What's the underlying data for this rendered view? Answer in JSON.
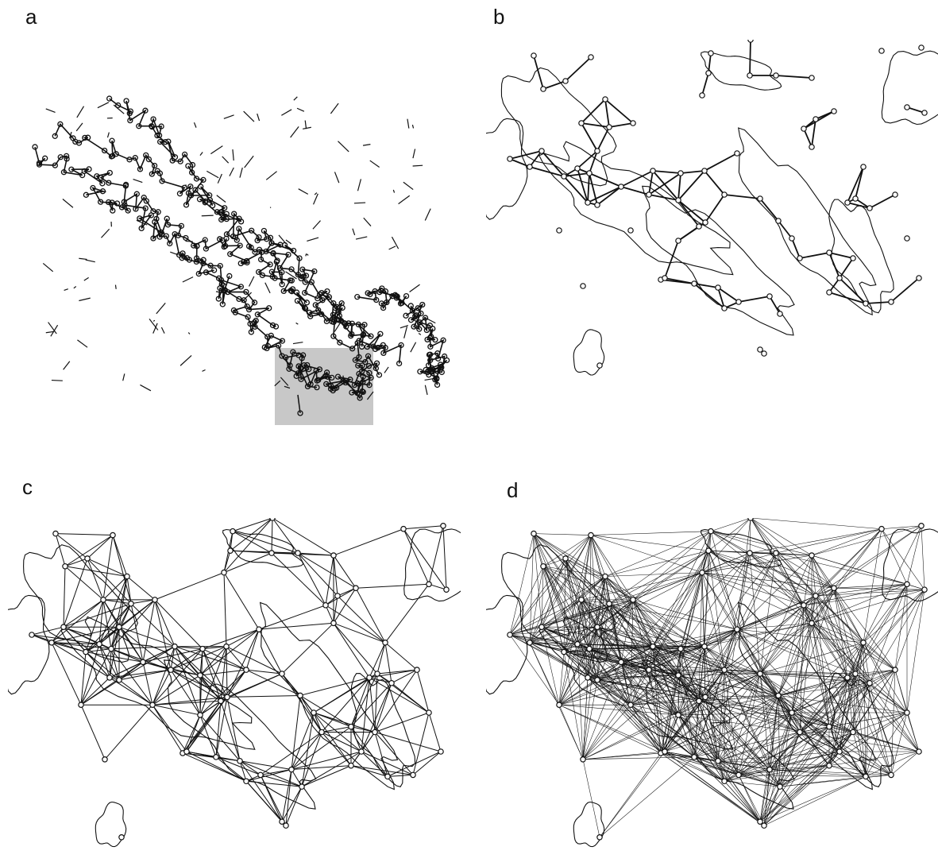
{
  "figure": {
    "panels": [
      {
        "id": "a",
        "label": "a"
      },
      {
        "id": "b",
        "label": "b"
      },
      {
        "id": "c",
        "label": "c"
      },
      {
        "id": "d",
        "label": "d"
      }
    ],
    "colors": {
      "ink": "#111111",
      "highlight": "#c8c8c8",
      "background": "#ffffff"
    }
  }
}
